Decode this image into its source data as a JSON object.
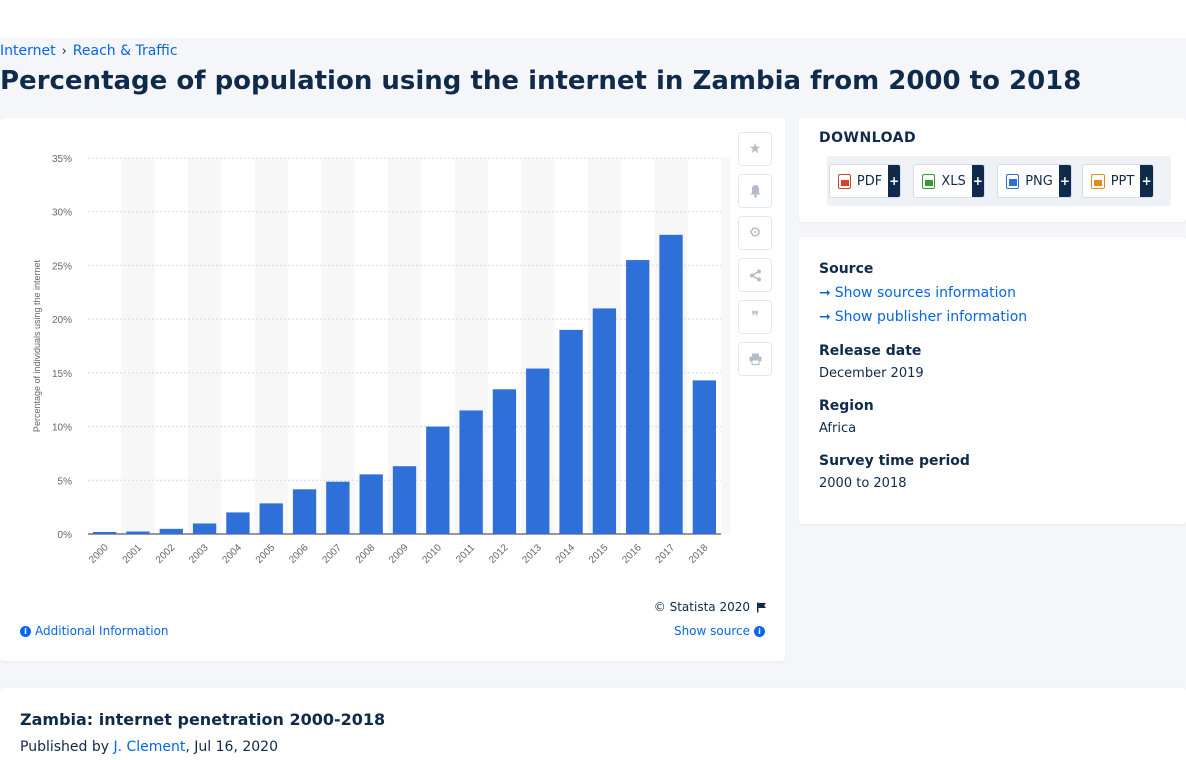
{
  "breadcrumb": {
    "items": [
      "Internet",
      "Reach & Traffic"
    ]
  },
  "page_title": "Percentage of population using the internet in Zambia from 2000 to 2018",
  "chart_data": {
    "type": "bar",
    "categories": [
      "2000",
      "2001",
      "2002",
      "2003",
      "2004",
      "2005",
      "2006",
      "2007",
      "2008",
      "2009",
      "2010",
      "2011",
      "2012",
      "2013",
      "2014",
      "2015",
      "2016",
      "2017",
      "2018"
    ],
    "values": [
      0.19,
      0.23,
      0.48,
      0.98,
      2.01,
      2.85,
      4.16,
      4.87,
      5.55,
      6.31,
      10.0,
      11.5,
      13.47,
      15.4,
      19.0,
      21.0,
      25.5,
      27.85,
      14.3
    ],
    "ylabel": "Percentage of individuals using the internet",
    "ylim": [
      0,
      35
    ],
    "yticks": [
      0,
      5,
      10,
      15,
      20,
      25,
      30,
      35
    ],
    "ytick_labels": [
      "0%",
      "5%",
      "10%",
      "15%",
      "20%",
      "25%",
      "30%",
      "35%"
    ],
    "grid": true,
    "bar_color": "#2f6fd8"
  },
  "chart_footer": {
    "copyright": "© Statista 2020",
    "additional_info": "Additional Information",
    "show_source": "Show source"
  },
  "side_tools": [
    "star-icon",
    "bell-icon",
    "gear-icon",
    "share-icon",
    "quote-icon",
    "print-icon"
  ],
  "download": {
    "title": "DOWNLOAD",
    "buttons": [
      {
        "label": "PDF",
        "icon": "pdf-icon",
        "color": "#d9412e"
      },
      {
        "label": "XLS",
        "icon": "xls-icon",
        "color": "#3a9a3a"
      },
      {
        "label": "PNG",
        "icon": "png-icon",
        "color": "#2f6fd8"
      },
      {
        "label": "PPT",
        "icon": "ppt-icon",
        "color": "#e88a1a"
      }
    ]
  },
  "meta": {
    "source_label": "Source",
    "show_sources": "Show sources information",
    "show_publisher": "Show publisher information",
    "release_label": "Release date",
    "release_value": "December 2019",
    "region_label": "Region",
    "region_value": "Africa",
    "period_label": "Survey time period",
    "period_value": "2000 to 2018"
  },
  "bottom": {
    "title": "Zambia: internet penetration 2000-2018",
    "published_prefix": "Published by ",
    "author": "J. Clement",
    "date": ", Jul 16, 2020"
  },
  "colors": {
    "accent": "#0666e5",
    "text": "#0f2a4a"
  }
}
